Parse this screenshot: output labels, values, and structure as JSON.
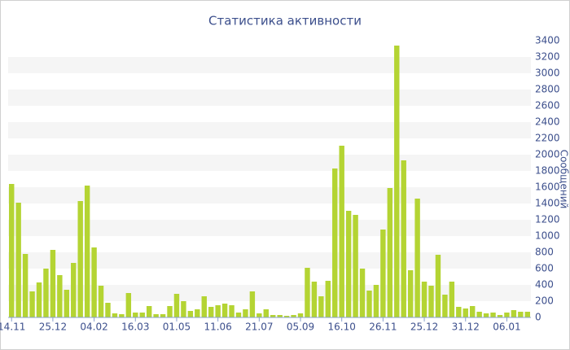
{
  "chart_data": {
    "type": "bar",
    "title": "Статистика активности",
    "y_label": "Сообщений",
    "categories": [
      "14.11",
      null,
      null,
      null,
      null,
      null,
      "25.12",
      null,
      null,
      null,
      null,
      null,
      "04.02",
      null,
      null,
      null,
      null,
      null,
      "16.03",
      null,
      null,
      null,
      null,
      null,
      "01.05",
      null,
      null,
      null,
      null,
      null,
      "11.06",
      null,
      null,
      null,
      null,
      null,
      "21.07",
      null,
      null,
      null,
      null,
      null,
      "05.09",
      null,
      null,
      null,
      null,
      null,
      "16.10",
      null,
      null,
      null,
      null,
      null,
      "26.11",
      null,
      null,
      null,
      null,
      null,
      "25.12",
      null,
      null,
      null,
      null,
      null,
      "31.12",
      null,
      null,
      null,
      null,
      null,
      "06.01",
      null,
      null,
      null
    ],
    "values": [
      1640,
      1410,
      780,
      320,
      430,
      600,
      830,
      520,
      340,
      670,
      1430,
      1620,
      860,
      390,
      180,
      50,
      40,
      300,
      60,
      60,
      140,
      40,
      40,
      140,
      290,
      200,
      80,
      100,
      260,
      130,
      150,
      170,
      150,
      60,
      100,
      320,
      50,
      100,
      30,
      30,
      20,
      30,
      50,
      610,
      440,
      260,
      450,
      1830,
      2110,
      1310,
      1260,
      600,
      330,
      400,
      1080,
      1590,
      3340,
      1930,
      580,
      1460,
      440,
      390,
      770,
      280,
      440,
      130,
      110,
      140,
      70,
      50,
      60,
      30,
      60,
      90,
      70,
      70
    ],
    "color": "#b4d433",
    "ylim": [
      0,
      3400
    ],
    "yticks": [
      0,
      200,
      400,
      600,
      800,
      1000,
      1200,
      1400,
      1600,
      1800,
      2000,
      2200,
      2400,
      2600,
      2800,
      3000,
      3200,
      3400
    ],
    "grid": "bands",
    "y_axis_side": "right"
  }
}
